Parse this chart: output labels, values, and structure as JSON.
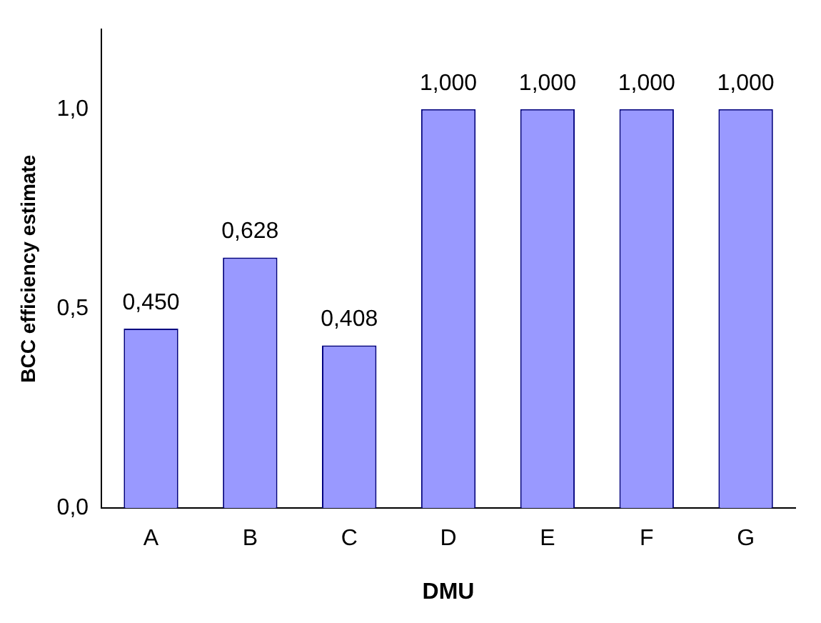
{
  "chart_data": {
    "type": "bar",
    "xlabel": "DMU",
    "ylabel": "BCC efficiency estimate",
    "categories": [
      "A",
      "B",
      "C",
      "D",
      "E",
      "F",
      "G"
    ],
    "values": [
      0.45,
      0.628,
      0.408,
      1.0,
      1.0,
      1.0,
      1.0
    ],
    "value_labels": [
      "0,450",
      "0,628",
      "0,408",
      "1,000",
      "1,000",
      "1,000",
      "1,000"
    ],
    "color": "#9999ff",
    "ylim": [
      0,
      1.2
    ],
    "yticks": [
      {
        "value": 0,
        "label": "0,0"
      },
      {
        "value": 0.5,
        "label": "0,5"
      },
      {
        "value": 1,
        "label": "1,0"
      }
    ],
    "grid": false,
    "legend": false
  }
}
